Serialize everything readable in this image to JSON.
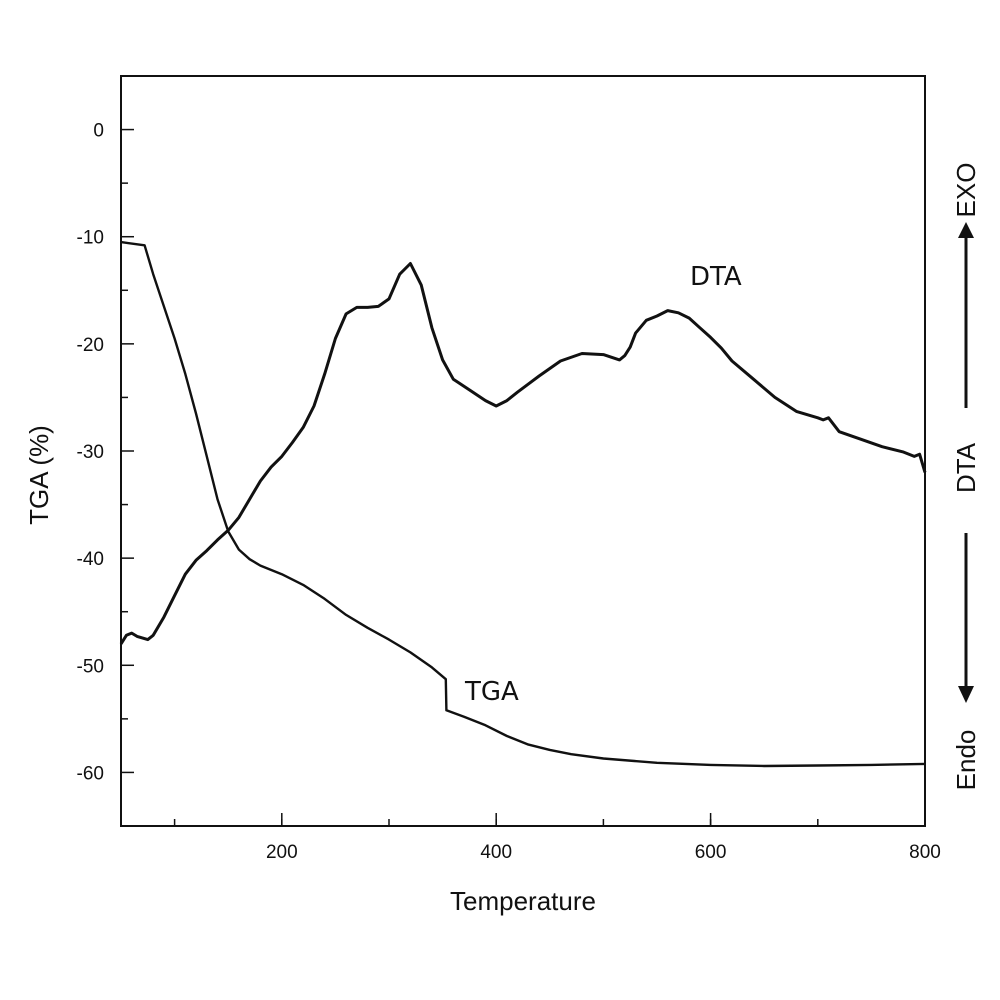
{
  "chart_data": {
    "type": "line",
    "title": "",
    "xlabel": "Temperature",
    "ylabel": "TGA (%)",
    "right_axis": {
      "label": "DTA",
      "top_label": "EXO",
      "bottom_label": "Endo",
      "arrows": "up-top-down-bottom"
    },
    "xlim": [
      50,
      800
    ],
    "ylim": [
      -65,
      5
    ],
    "x_ticks": [
      200,
      400,
      600,
      800
    ],
    "y_ticks": [
      0,
      -10,
      -20,
      -30,
      -40,
      -50,
      -60
    ],
    "grid": false,
    "legend": "none",
    "series": [
      {
        "name": "TGA",
        "x": [
          50,
          72,
          80,
          90,
          100,
          110,
          120,
          130,
          140,
          150,
          160,
          170,
          180,
          200,
          220,
          240,
          260,
          280,
          300,
          320,
          340,
          353,
          353.5,
          370,
          390,
          410,
          430,
          450,
          470,
          500,
          550,
          600,
          650,
          700,
          750,
          800
        ],
        "y": [
          -10.5,
          -10.8,
          -13.5,
          -16.5,
          -19.5,
          -22.8,
          -26.5,
          -30.5,
          -34.5,
          -37.5,
          -39.2,
          -40.1,
          -40.7,
          -41.5,
          -42.5,
          -43.8,
          -45.3,
          -46.5,
          -47.6,
          -48.8,
          -50.2,
          -51.3,
          -54.2,
          -54.8,
          -55.6,
          -56.6,
          -57.4,
          -57.9,
          -58.3,
          -58.7,
          -59.1,
          -59.3,
          -59.4,
          -59.35,
          -59.3,
          -59.2
        ]
      },
      {
        "name": "DTA",
        "x": [
          50,
          55,
          60,
          65,
          75,
          80,
          90,
          100,
          110,
          120,
          130,
          140,
          150,
          160,
          170,
          180,
          190,
          200,
          210,
          220,
          230,
          240,
          250,
          260,
          270,
          280,
          290,
          300,
          310,
          320,
          330,
          340,
          350,
          360,
          375,
          390,
          400,
          410,
          420,
          440,
          460,
          480,
          500,
          515,
          520,
          525,
          530,
          540,
          550,
          560,
          570,
          580,
          590,
          600,
          610,
          620,
          640,
          660,
          680,
          700,
          705,
          710,
          720,
          740,
          760,
          780,
          790,
          795,
          800
        ],
        "y": [
          -48.0,
          -47.2,
          -47.0,
          -47.3,
          -47.6,
          -47.2,
          -45.5,
          -43.5,
          -41.5,
          -40.2,
          -39.3,
          -38.3,
          -37.4,
          -36.2,
          -34.5,
          -32.8,
          -31.5,
          -30.5,
          -29.2,
          -27.8,
          -25.8,
          -22.8,
          -19.5,
          -17.2,
          -16.6,
          -16.6,
          -16.5,
          -15.8,
          -13.5,
          -12.5,
          -14.5,
          -18.5,
          -21.5,
          -23.3,
          -24.3,
          -25.3,
          -25.8,
          -25.3,
          -24.5,
          -23.0,
          -21.6,
          -20.9,
          -21.0,
          -21.5,
          -21.1,
          -20.3,
          -19.0,
          -17.8,
          -17.4,
          -16.9,
          -17.1,
          -17.6,
          -18.5,
          -19.4,
          -20.4,
          -21.6,
          -23.3,
          -25.0,
          -26.3,
          -26.9,
          -27.1,
          -26.9,
          -28.2,
          -28.9,
          -29.6,
          -30.1,
          -30.5,
          -30.3,
          -32.0
        ]
      }
    ],
    "annotations": [
      {
        "text": "TGA",
        "near_series": "TGA"
      },
      {
        "text": "DTA",
        "near_series": "DTA"
      }
    ]
  }
}
